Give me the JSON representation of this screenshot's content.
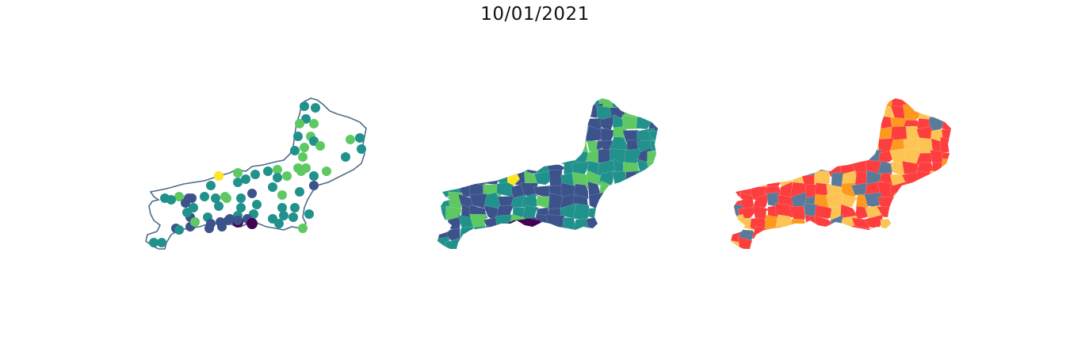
{
  "title": "10/01/2021",
  "colors": {
    "outline": "#4f6d89",
    "viridis": [
      "#440154",
      "#3b528b",
      "#21918c",
      "#5ec962",
      "#fde725"
    ],
    "category": [
      "#fd3e3e",
      "#fdc453",
      "#fd9a1e",
      "#5a7a99"
    ]
  },
  "panels": [
    {
      "name": "bubble-map",
      "type": "proportional-symbols"
    },
    {
      "name": "choropleth-map",
      "type": "choropleth"
    },
    {
      "name": "category-map",
      "type": "categorical-choropleth"
    }
  ]
}
